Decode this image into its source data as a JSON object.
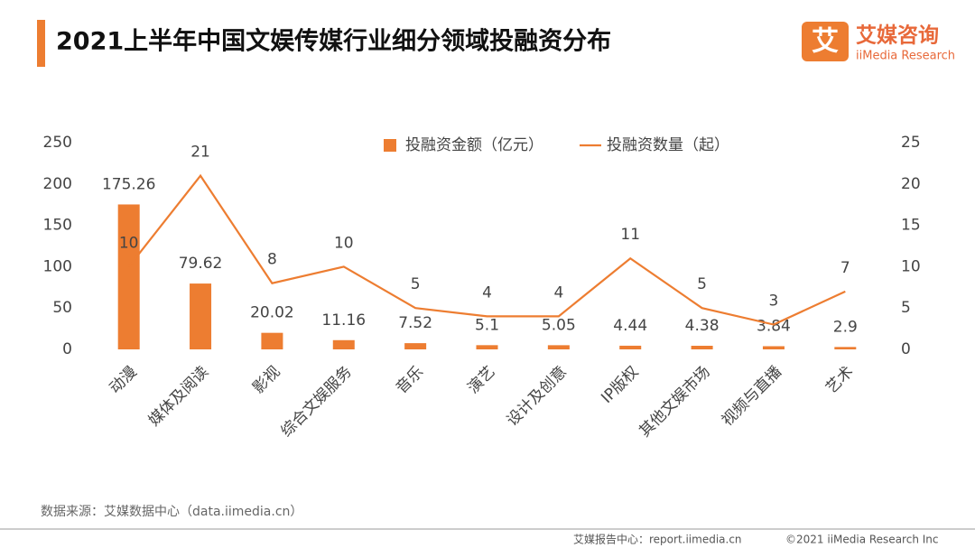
{
  "title": "2021上半年中国文娱传媒行业细分领域投融资分布",
  "logo": {
    "mark": "艾",
    "name": "艾媒咨询",
    "subname": "iiMedia Research"
  },
  "source": "数据来源：艾媒数据中心（data.iimedia.cn）",
  "footer": {
    "left": "艾媒报告中心：report.iimedia.cn",
    "right": "©2021  iiMedia Research  Inc"
  },
  "chart_data": {
    "type": "bar",
    "categories": [
      "动漫",
      "媒体及阅读",
      "影视",
      "综合文娱服务",
      "音乐",
      "演艺",
      "设计及创意",
      "IP版权",
      "其他文娱市场",
      "视频与直播",
      "艺术"
    ],
    "series": [
      {
        "name": "投融资金额（亿元）",
        "type": "bar",
        "color": "#ed7d31",
        "values": [
          175.26,
          79.62,
          20.02,
          11.16,
          7.52,
          5.1,
          5.05,
          4.44,
          4.38,
          3.84,
          2.9
        ]
      },
      {
        "name": "投融资数量（起）",
        "type": "line",
        "axis": "y2",
        "color": "#ed7d31",
        "values": [
          10,
          21,
          8,
          10,
          5,
          4,
          4,
          11,
          5,
          3,
          7
        ]
      }
    ],
    "ylim": [
      0,
      250
    ],
    "yticks": [
      0,
      50,
      100,
      150,
      200,
      250
    ],
    "y2lim": [
      0,
      25
    ],
    "y2ticks": [
      0,
      5,
      10,
      15,
      20,
      25
    ],
    "grid": false,
    "legend": "top"
  }
}
